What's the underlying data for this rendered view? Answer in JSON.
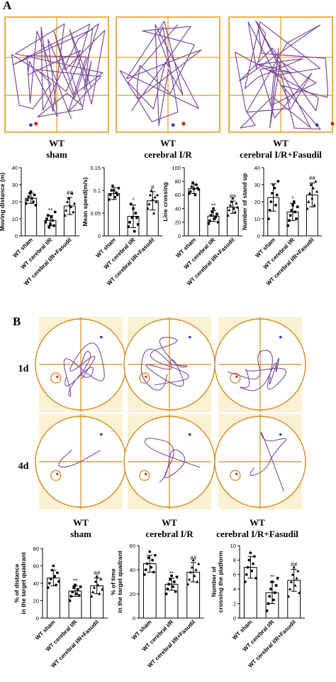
{
  "panel_labels": [
    "A",
    "B"
  ],
  "open_field": {
    "groups": [
      {
        "line1": "WT",
        "line2": "sham"
      },
      {
        "line1": "WT",
        "line2": "cerebral I/R"
      },
      {
        "line1": "WT",
        "line2": "cerebral I/R+Fasudil"
      }
    ]
  },
  "water_maze": {
    "day_labels": [
      "1d",
      "4d"
    ],
    "groups": [
      {
        "line1": "WT",
        "line2": "sham"
      },
      {
        "line1": "WT",
        "line2": "cerebral I/R"
      },
      {
        "line1": "WT",
        "line2": "cerebral I/R+Fasudil"
      }
    ]
  },
  "colors": {
    "grid_border": "#e59a26",
    "track": "#7b4a9a",
    "maze_background": "#fdf1d4",
    "pool_outline": "#d58c1e",
    "marker_red": "#e0201b",
    "marker_blue": "#2b3fb0",
    "bar_fill": "#ffffff",
    "bar_stroke": "#000000"
  },
  "chart_data": [
    {
      "type": "bar",
      "ylabel": "Moving distance (m)",
      "ylim": [
        0,
        40
      ],
      "yticks": [
        0,
        10,
        20,
        30,
        40
      ],
      "categories": [
        "WT sham",
        "WT cerebral I/R",
        "WT cerebral I/R+Fasudil"
      ],
      "values": [
        22,
        9,
        17.5
      ],
      "errors": [
        3,
        3,
        5
      ],
      "significance": [
        "",
        "**",
        "##"
      ],
      "points": [
        [
          19,
          21,
          23,
          25,
          26,
          22,
          20,
          24,
          18
        ],
        [
          8,
          10,
          12,
          5,
          7,
          11,
          9,
          6,
          14
        ],
        [
          12,
          15,
          20,
          22,
          18,
          17,
          25,
          14,
          19
        ]
      ]
    },
    {
      "type": "bar",
      "ylabel": "Mean speed(m/s)",
      "ylim": [
        0,
        0.15
      ],
      "yticks": [
        0,
        0.05,
        0.1,
        0.15
      ],
      "categories": [
        "WT sham",
        "WT cerebral I/R",
        "WT cerebral I/R+Fasudil"
      ],
      "values": [
        0.093,
        0.043,
        0.077
      ],
      "errors": [
        0.013,
        0.025,
        0.02
      ],
      "significance": [
        "",
        "*",
        "#"
      ],
      "points": [
        [
          0.08,
          0.09,
          0.1,
          0.11,
          0.1,
          0.085,
          0.095,
          0.09,
          0.105
        ],
        [
          0.02,
          0.03,
          0.07,
          0.04,
          0.06,
          0.01,
          0.05,
          0.04,
          0.025
        ],
        [
          0.06,
          0.07,
          0.09,
          0.1,
          0.08,
          0.05,
          0.085,
          0.075,
          0.09
        ]
      ]
    },
    {
      "type": "bar",
      "ylabel": "Line crossing",
      "ylim": [
        0,
        100
      ],
      "yticks": [
        0,
        20,
        40,
        60,
        80,
        100
      ],
      "categories": [
        "WT sham",
        "WT cerebral I/R",
        "WT cerebral I/R+Fasudil"
      ],
      "values": [
        69,
        29,
        42
      ],
      "errors": [
        7,
        8,
        9
      ],
      "significance": [
        "",
        "**",
        "##"
      ],
      "points": [
        [
          62,
          65,
          72,
          78,
          69,
          60,
          75,
          70,
          68
        ],
        [
          18,
          22,
          30,
          35,
          40,
          25,
          28,
          32,
          20
        ],
        [
          30,
          38,
          45,
          50,
          55,
          40,
          35,
          48,
          42
        ]
      ]
    },
    {
      "type": "bar",
      "ylabel": "Number of stand up",
      "ylim": [
        0,
        40
      ],
      "yticks": [
        0,
        10,
        20,
        30,
        40
      ],
      "categories": [
        "WT sham",
        "WT cerebral I/R",
        "WT cerebral I/R+Fasudil"
      ],
      "values": [
        22.5,
        14,
        24
      ],
      "errors": [
        8,
        5,
        7
      ],
      "significance": [
        "",
        "*",
        "##"
      ],
      "points": [
        [
          10,
          15,
          20,
          25,
          30,
          28,
          18,
          24,
          32
        ],
        [
          6,
          9,
          12,
          15,
          18,
          20,
          14,
          10,
          17
        ],
        [
          16,
          20,
          25,
          30,
          22,
          28,
          18,
          32,
          26
        ]
      ]
    },
    {
      "type": "bar",
      "ylabel": "% of distance in the target quadrant",
      "ylim": [
        0,
        80
      ],
      "yticks": [
        0,
        20,
        40,
        60,
        80
      ],
      "categories": [
        "WT sham",
        "WT cerebral I/R",
        "WT cerebral I/R+Fasudil"
      ],
      "values": [
        46,
        31,
        37
      ],
      "errors": [
        9,
        6,
        9
      ],
      "significance": [
        "",
        "**",
        "##"
      ],
      "points": [
        [
          35,
          40,
          45,
          55,
          60,
          48,
          38,
          52,
          42
        ],
        [
          20,
          25,
          30,
          35,
          38,
          28,
          33,
          26,
          36
        ],
        [
          25,
          30,
          35,
          42,
          48,
          38,
          28,
          45,
          33
        ]
      ]
    },
    {
      "type": "bar",
      "ylabel": "% of time in the target quadrant",
      "ylim": [
        0,
        60
      ],
      "yticks": [
        0,
        20,
        40,
        60
      ],
      "categories": [
        "WT sham",
        "WT cerebral I/R",
        "WT cerebral I/R+Fasudil"
      ],
      "values": [
        45,
        28,
        38
      ],
      "errors": [
        7,
        5,
        8
      ],
      "significance": [
        "",
        "**",
        "##"
      ],
      "points": [
        [
          36,
          40,
          45,
          50,
          55,
          42,
          48,
          38,
          52
        ],
        [
          20,
          24,
          28,
          32,
          35,
          26,
          30,
          22,
          34
        ],
        [
          28,
          32,
          38,
          42,
          48,
          35,
          40,
          30,
          45
        ]
      ]
    },
    {
      "type": "bar",
      "ylabel": "Number of crossing the platform",
      "ylim": [
        0,
        10
      ],
      "yticks": [
        0,
        2,
        4,
        6,
        8,
        10
      ],
      "categories": [
        "WT sham",
        "WT cerebral I/R",
        "WT cerebral I/R+Fasudil"
      ],
      "values": [
        7,
        3.5,
        5.2
      ],
      "errors": [
        1.5,
        1.5,
        1.5
      ],
      "significance": [
        "",
        "**",
        "##"
      ],
      "points": [
        [
          5,
          6,
          7,
          8,
          9,
          6.5,
          7.5,
          8.5,
          5.5
        ],
        [
          1,
          2,
          3,
          4,
          5,
          2.5,
          3.5,
          4.5,
          5.5
        ],
        [
          3,
          4,
          5,
          6,
          7,
          4.5,
          5.5,
          6.5,
          3.5
        ]
      ]
    }
  ]
}
